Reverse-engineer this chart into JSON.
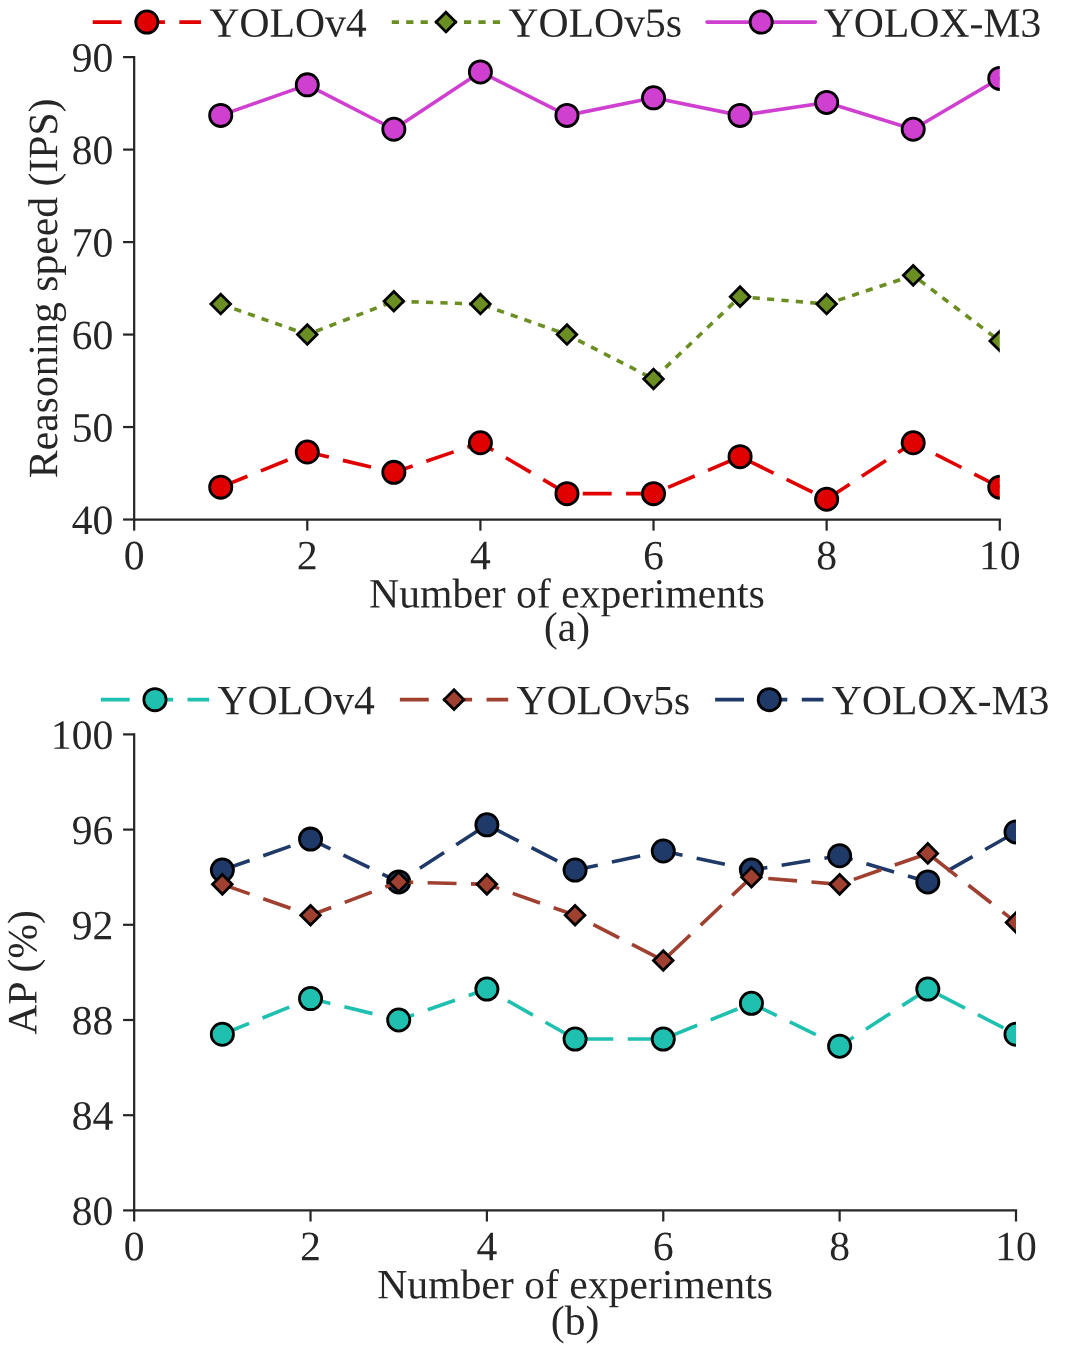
{
  "chart_data": [
    {
      "type": "line",
      "xlabel": "Number of experiments",
      "ylabel": "Reasoning speed (IPS)",
      "annotations": [
        "(a)"
      ],
      "x": [
        1,
        2,
        3,
        4,
        5,
        6,
        7,
        8,
        9,
        10
      ],
      "xlim": [
        0,
        10
      ],
      "xticks": [
        0,
        2,
        4,
        6,
        8,
        10
      ],
      "ylim": [
        40,
        90
      ],
      "yticks": [
        40,
        50,
        60,
        70,
        80,
        90
      ],
      "legend": "top",
      "grid": false,
      "series": [
        {
          "name": "YOLOv4",
          "color": "#e00000",
          "marker": "circle",
          "line_style": "dashed",
          "values": [
            43.5,
            47.3,
            45.1,
            48.3,
            42.8,
            42.8,
            46.8,
            42.2,
            48.3,
            43.5
          ]
        },
        {
          "name": "YOLOv5s",
          "color": "#6b8e23",
          "marker": "diamond",
          "line_style": "dotted",
          "values": [
            63.3,
            60.0,
            63.6,
            63.3,
            60.0,
            55.2,
            64.1,
            63.3,
            66.4,
            59.3
          ]
        },
        {
          "name": "YOLOX-M3",
          "color": "#d040d0",
          "marker": "circle",
          "line_style": "solid",
          "values": [
            83.7,
            87.0,
            82.2,
            88.4,
            83.7,
            85.6,
            83.7,
            85.1,
            82.2,
            87.7
          ]
        }
      ]
    },
    {
      "type": "line",
      "xlabel": "Number of experiments",
      "ylabel": "AP (%)",
      "annotations": [
        "(b)"
      ],
      "x": [
        1,
        2,
        3,
        4,
        5,
        6,
        7,
        8,
        9,
        10
      ],
      "xlim": [
        0,
        10
      ],
      "xticks": [
        0,
        2,
        4,
        6,
        8,
        10
      ],
      "ylim": [
        80,
        100
      ],
      "yticks": [
        80,
        84,
        88,
        92,
        96,
        100
      ],
      "legend": "top",
      "grid": false,
      "series": [
        {
          "name": "YOLOv4",
          "color": "#20c0b0",
          "marker": "circle",
          "line_style": "dashed",
          "values": [
            87.4,
            88.9,
            88.0,
            89.3,
            87.2,
            87.2,
            88.7,
            86.9,
            89.3,
            87.4
          ]
        },
        {
          "name": "YOLOv5s",
          "color": "#a04030",
          "marker": "diamond",
          "line_style": "dashed",
          "values": [
            93.7,
            92.4,
            93.8,
            93.7,
            92.4,
            90.5,
            94.0,
            93.7,
            95.0,
            92.1
          ]
        },
        {
          "name": "YOLOX-M3",
          "color": "#1f3a68",
          "marker": "circle",
          "line_style": "dashed",
          "values": [
            94.3,
            95.6,
            93.8,
            96.2,
            94.3,
            95.1,
            94.3,
            94.9,
            93.8,
            95.9
          ]
        }
      ]
    }
  ]
}
